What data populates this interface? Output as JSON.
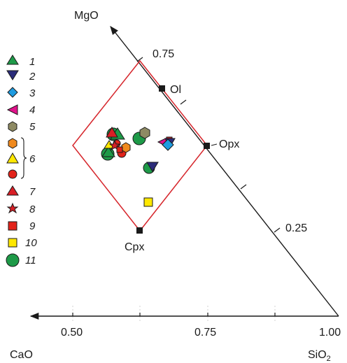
{
  "axes": {
    "top_label": "MgO",
    "bottom_left_label": "CaO",
    "bottom_right_label_main": "SiO",
    "bottom_right_label_sub": "2",
    "x_ticks": [
      "0.50",
      "0.75",
      "1.00"
    ],
    "diag_ticks": [
      "0.75",
      "0.25"
    ]
  },
  "minerals": {
    "ol": "Ol",
    "opx": "Opx",
    "cpx": "Cpx"
  },
  "legend": {
    "items": [
      {
        "label": "1",
        "shape": "triangle-up",
        "color": "#1e9a48"
      },
      {
        "label": "2",
        "shape": "triangle-down",
        "color": "#2b2c7a"
      },
      {
        "label": "3",
        "shape": "diamond",
        "color": "#1e9be0"
      },
      {
        "label": "4",
        "shape": "triangle-left",
        "color": "#e0128a"
      },
      {
        "label": "5",
        "shape": "hexagon",
        "color": "#8e8a63"
      },
      {
        "label": "6",
        "shape": "group",
        "members": [
          {
            "shape": "hexagon",
            "color": "#f08a1e"
          },
          {
            "shape": "triangle-up",
            "color": "#ffe800"
          },
          {
            "shape": "circle",
            "color": "#e2231a"
          }
        ]
      },
      {
        "label": "7",
        "shape": "triangle-up",
        "color": "#d91f26"
      },
      {
        "label": "8",
        "shape": "star",
        "color": "#d91f26"
      },
      {
        "label": "9",
        "shape": "square",
        "color": "#e2231a"
      },
      {
        "label": "10",
        "shape": "square",
        "color": "#ffe800"
      },
      {
        "label": "11",
        "shape": "circle-large",
        "color": "#1e9a48"
      }
    ]
  },
  "colors": {
    "frame": "#d6262c",
    "axis": "#1a1a1a",
    "green": "#1e9a48",
    "navy": "#2b2c7a",
    "blue": "#1e9be0",
    "magenta": "#e0128a",
    "olive": "#8e8a63",
    "orange": "#f08a1e",
    "yellow": "#ffe800",
    "red": "#e2231a"
  }
}
